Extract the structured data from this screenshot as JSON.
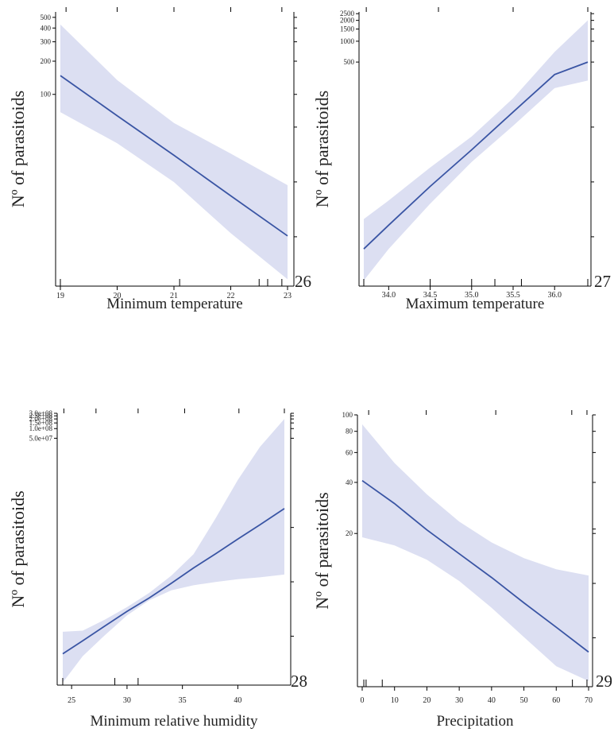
{
  "colors": {
    "line": "#3a55a4",
    "band": "#dcdff2",
    "axis": "#000000"
  },
  "chart_data": [
    {
      "type": "line",
      "panel_number": "26",
      "xlabel": "Minimum temperature",
      "ylabel": "Nº of parasitoids",
      "xlim": [
        18.97,
        23.06
      ],
      "x_ticks": [
        19,
        20,
        21,
        22,
        23
      ],
      "x_tick_labels": [
        "19",
        "20",
        "21",
        "22",
        "23"
      ],
      "y_scale": "log",
      "ylim": [
        1.82,
        560
      ],
      "y_ticks": [
        100,
        200,
        300,
        400,
        500
      ],
      "y_tick_labels": [
        "100",
        "200",
        "300",
        "400",
        "500"
      ],
      "rug": [
        19.0,
        21.1,
        22.5,
        22.65,
        22.9
      ],
      "top_ticks": [
        19.1,
        20.0,
        21.0,
        22.0,
        22.9
      ],
      "series": [
        {
          "x": [
            19.0,
            20.0,
            21.0,
            22.0,
            23.0
          ],
          "y": [
            148,
            64,
            28,
            12,
            5.2
          ],
          "lower": [
            69,
            36,
            16,
            5.5,
            2.1
          ],
          "upper": [
            430,
            135,
            55,
            29,
            15
          ]
        }
      ]
    },
    {
      "type": "line",
      "panel_number": "27",
      "xlabel": "Maximum temperature",
      "ylabel": "Nº of parasitoids",
      "xlim": [
        33.62,
        36.49
      ],
      "x_ticks": [
        34.0,
        34.5,
        35.0,
        35.5,
        36.0
      ],
      "x_tick_labels": [
        "34.0",
        "34.5",
        "35.0",
        "35.5",
        "36.0"
      ],
      "y_scale": "log",
      "ylim": [
        0.29,
        2650
      ],
      "y_ticks": [
        500,
        1000,
        1500,
        2000,
        2500
      ],
      "y_tick_labels": [
        "500",
        "1000",
        "1500",
        "2000",
        "2500"
      ],
      "rug": [
        33.7,
        34.5,
        35.0,
        35.28,
        35.6,
        36.4
      ],
      "top_ticks": [
        33.73,
        34.6,
        35.5,
        36.4
      ],
      "series": [
        {
          "x": [
            33.7,
            34.0,
            34.5,
            35.0,
            35.5,
            36.0,
            36.4
          ],
          "y": [
            1.0,
            2.2,
            8.0,
            27,
            95,
            330,
            500
          ],
          "lower": [
            0.35,
            1.0,
            4.5,
            18,
            60,
            210,
            270
          ],
          "upper": [
            2.7,
            5.0,
            15,
            42,
            150,
            700,
            2000
          ]
        }
      ]
    },
    {
      "type": "line",
      "panel_number": "28",
      "xlabel": "Minimum relative humidity",
      "ylabel": "Nº of parasitoids",
      "xlim": [
        23.85,
        44.55
      ],
      "x_ticks": [
        25,
        30,
        35,
        40
      ],
      "x_tick_labels": [
        "25",
        "30",
        "35",
        "40"
      ],
      "y_scale": "log",
      "ylim": [
        1.0,
        300000000
      ],
      "y_ticks": [
        50000000,
        100000000,
        150000000,
        200000000,
        250000000,
        300000000
      ],
      "y_tick_labels": [
        "5.0e+07",
        "1.0e+08",
        "1.5e+08",
        "2.0e+08",
        "2.5e+08",
        "3.0e+08"
      ],
      "rug": [
        24.2,
        28.9,
        31.0
      ],
      "top_ticks": [
        24.3,
        27.2,
        31.0,
        35.2,
        40.1,
        44.2
      ],
      "series": [
        {
          "x": [
            24.2,
            26,
            28,
            30,
            32,
            34,
            36,
            38,
            40,
            42,
            44.2
          ],
          "y": [
            9.5,
            24,
            70,
            200,
            520,
            1500,
            4500,
            12500,
            36000,
            100000,
            320000
          ],
          "lower": [
            1.2,
            8,
            36,
            150,
            440,
            900,
            1300,
            1650,
            2000,
            2300,
            2800
          ],
          "upper": [
            46,
            50,
            110,
            270,
            750,
            2600,
            12000,
            160000,
            2500000,
            27000000,
            200000000
          ]
        }
      ]
    },
    {
      "type": "line",
      "panel_number": "29",
      "xlabel": "Precipitation",
      "ylabel": "Nº of parasitoids",
      "xlim": [
        -1.0,
        71.2
      ],
      "x_ticks": [
        0,
        10,
        20,
        30,
        40,
        50,
        60,
        70
      ],
      "x_tick_labels": [
        "0",
        "10",
        "20",
        "30",
        "40",
        "50",
        "60",
        "70"
      ],
      "y_scale": "log",
      "ylim": [
        2.5,
        100
      ],
      "y_ticks": [
        20,
        40,
        60,
        80,
        100
      ],
      "y_tick_labels": [
        "20",
        "40",
        "60",
        "80",
        "100"
      ],
      "rug": [
        0.5,
        1.2,
        6.2,
        65.0,
        69.5
      ],
      "top_ticks": [
        2.0,
        19.8,
        41.3,
        64.8,
        69.5
      ],
      "series": [
        {
          "x": [
            0,
            10,
            20,
            30,
            40,
            50,
            60,
            70
          ],
          "y": [
            41,
            30,
            21,
            15.2,
            11,
            7.8,
            5.6,
            4.0
          ],
          "lower": [
            19,
            17,
            14,
            10.5,
            7.3,
            4.9,
            3.3,
            2.7
          ],
          "upper": [
            88,
            52,
            34,
            23.5,
            17.7,
            14.3,
            12.3,
            11.3
          ]
        }
      ]
    }
  ]
}
